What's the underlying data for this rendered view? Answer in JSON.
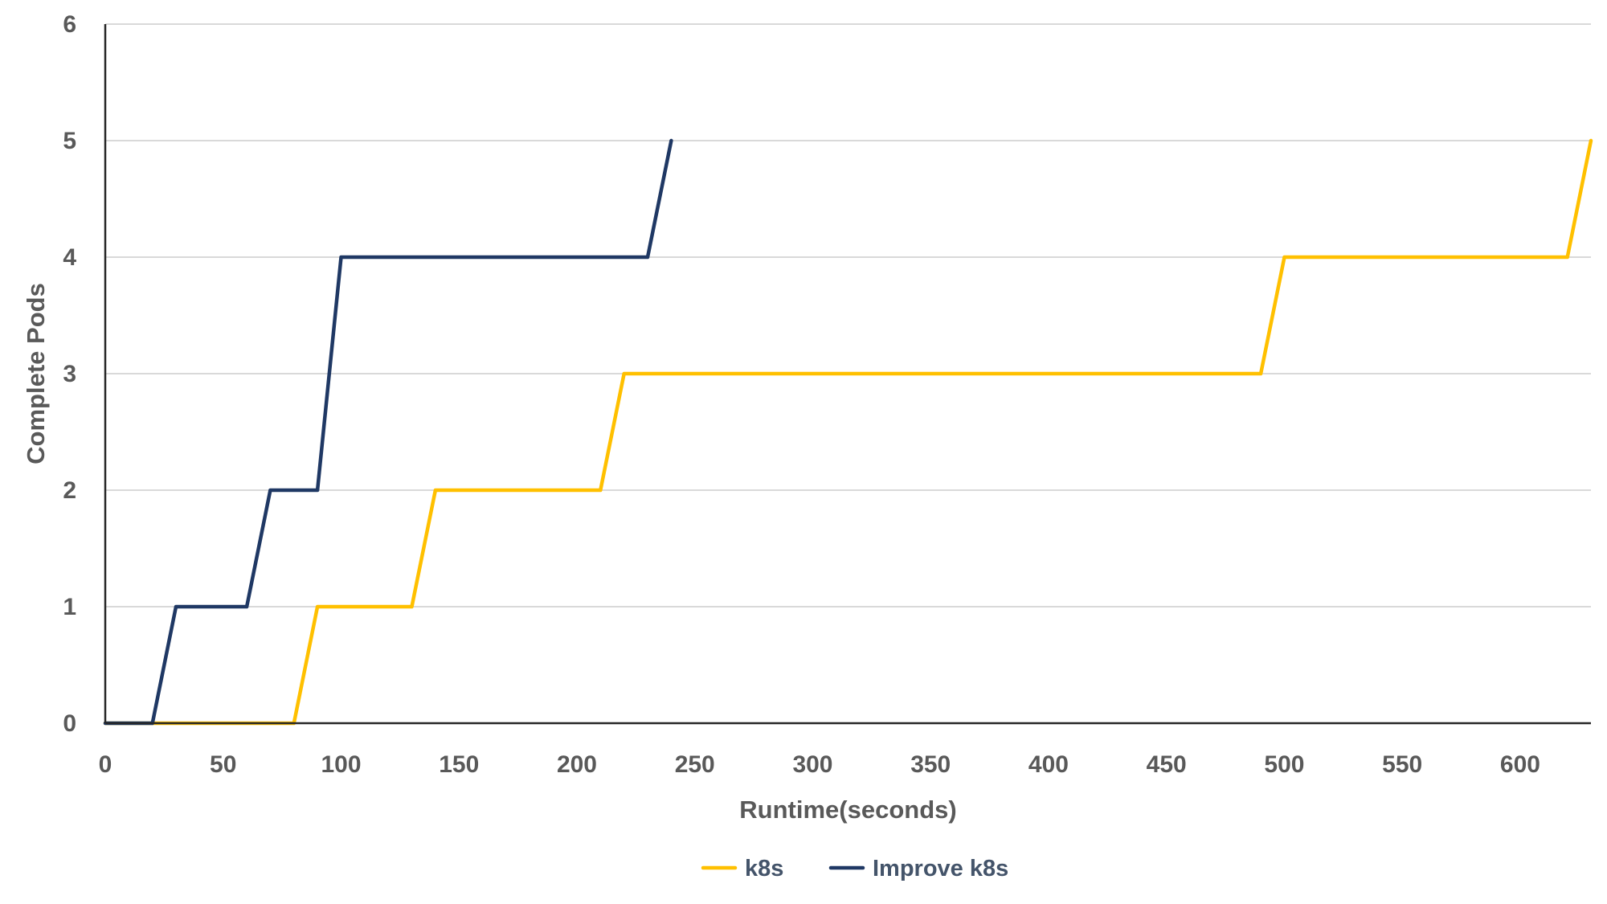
{
  "chart_data": {
    "type": "line",
    "title": "",
    "xlabel": "Runtime(seconds)",
    "ylabel": "Complete Pods",
    "xlim": [
      0,
      630
    ],
    "ylim": [
      0,
      6
    ],
    "x_ticks": [
      0,
      50,
      100,
      150,
      200,
      250,
      300,
      350,
      400,
      450,
      500,
      550,
      600
    ],
    "y_ticks": [
      0,
      1,
      2,
      3,
      4,
      5,
      6
    ],
    "grid": true,
    "legend_position": "bottom",
    "series": [
      {
        "name": "k8s",
        "color": "#FFC000",
        "points": [
          [
            0,
            0
          ],
          [
            20,
            0
          ],
          [
            80,
            0
          ],
          [
            90,
            1
          ],
          [
            130,
            1
          ],
          [
            140,
            2
          ],
          [
            210,
            2
          ],
          [
            220,
            3
          ],
          [
            490,
            3
          ],
          [
            500,
            4
          ],
          [
            620,
            4
          ],
          [
            630,
            5
          ]
        ]
      },
      {
        "name": "Improve k8s",
        "color": "#1F3864",
        "points": [
          [
            0,
            0
          ],
          [
            20,
            0
          ],
          [
            30,
            1
          ],
          [
            60,
            1
          ],
          [
            70,
            2
          ],
          [
            90,
            2
          ],
          [
            100,
            4
          ],
          [
            230,
            4
          ],
          [
            240,
            5
          ]
        ]
      }
    ]
  },
  "colors": {
    "axis": "#262626",
    "grid": "#D9D9D9",
    "text": "#595959",
    "legend_text": "#44546A"
  }
}
